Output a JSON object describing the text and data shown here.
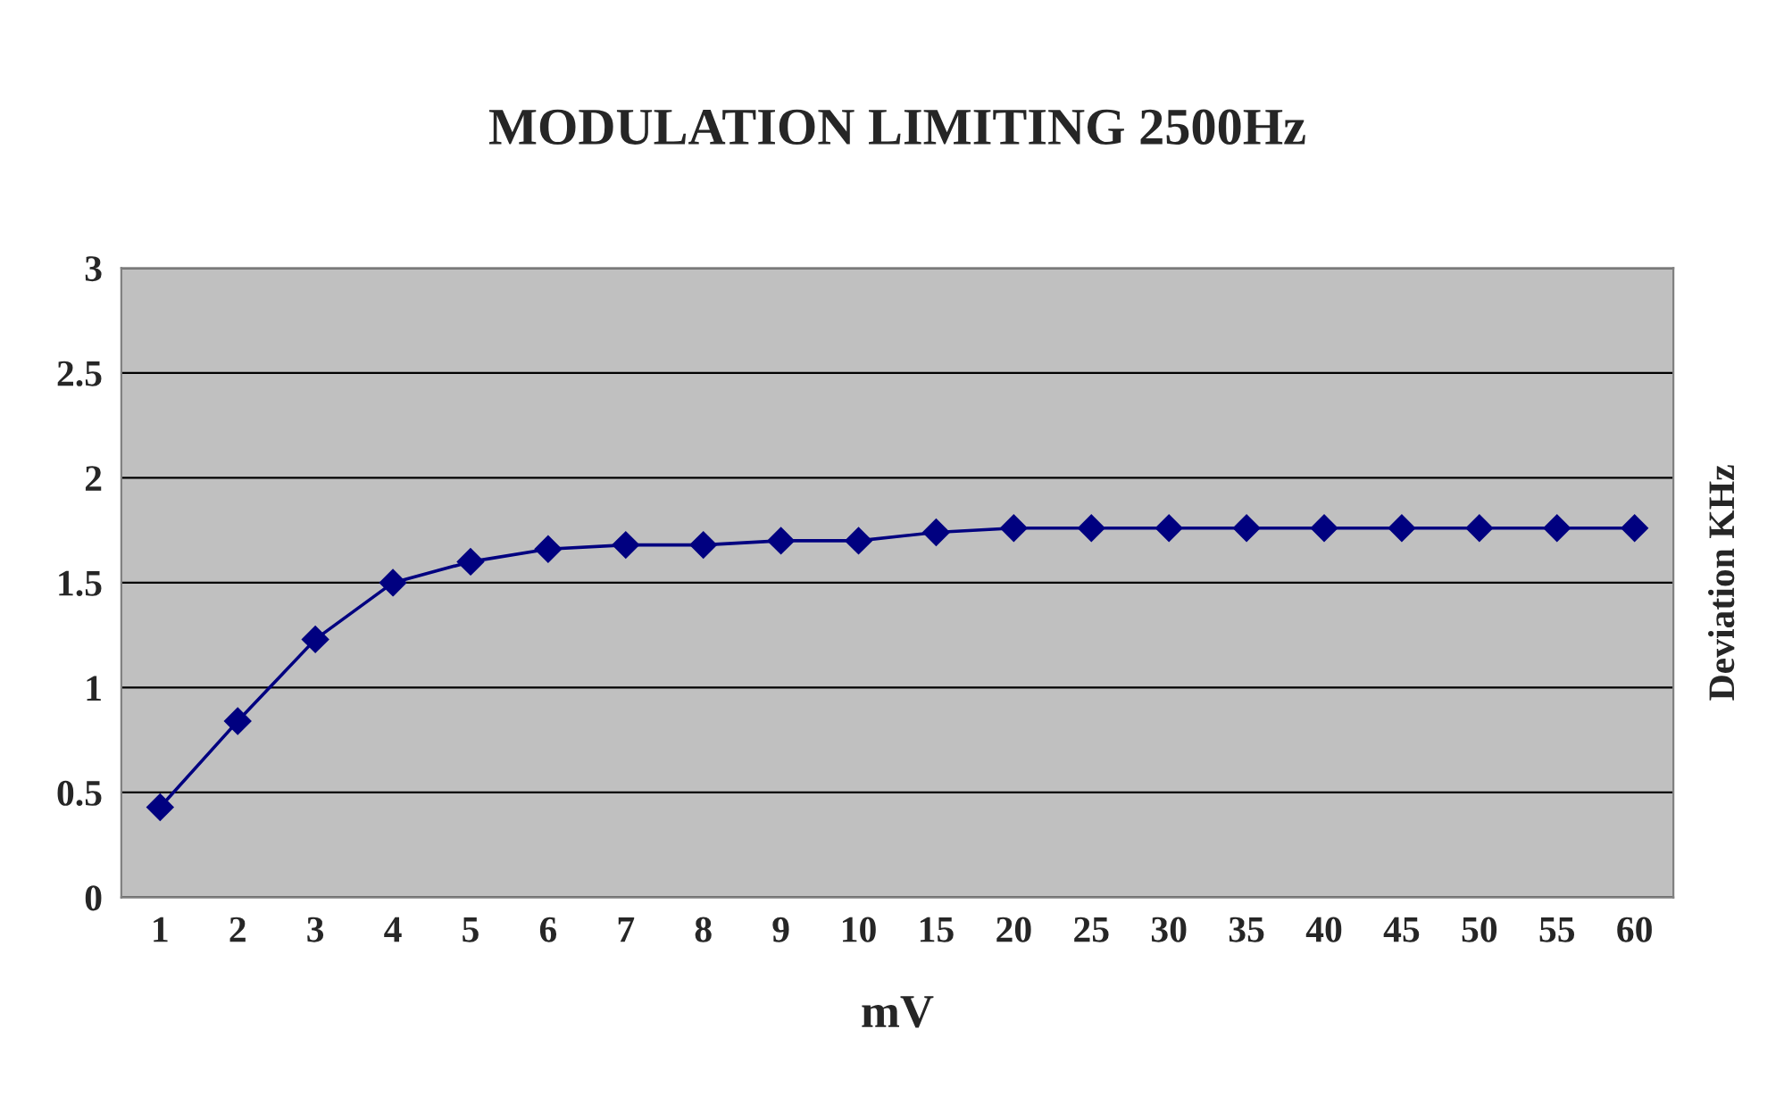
{
  "chart_data": {
    "type": "line",
    "title": "MODULATION LIMITING 2500Hz",
    "xlabel": "mV",
    "ylabel": "Deviation KHz",
    "categories": [
      "1",
      "2",
      "3",
      "4",
      "5",
      "6",
      "7",
      "8",
      "9",
      "10",
      "15",
      "20",
      "25",
      "30",
      "35",
      "40",
      "45",
      "50",
      "55",
      "60"
    ],
    "series": [
      {
        "color": "#000080",
        "values": [
          0.43,
          0.84,
          1.23,
          1.5,
          1.6,
          1.66,
          1.68,
          1.68,
          1.7,
          1.7,
          1.74,
          1.76,
          1.76,
          1.76,
          1.76,
          1.76,
          1.76,
          1.76,
          1.76,
          1.76
        ]
      }
    ],
    "ylim": [
      0,
      3
    ],
    "yticks": [
      0,
      0.5,
      1,
      1.5,
      2,
      2.5,
      3
    ],
    "grid": "y",
    "marker": "diamond",
    "line_style": "solid",
    "legend": false
  }
}
